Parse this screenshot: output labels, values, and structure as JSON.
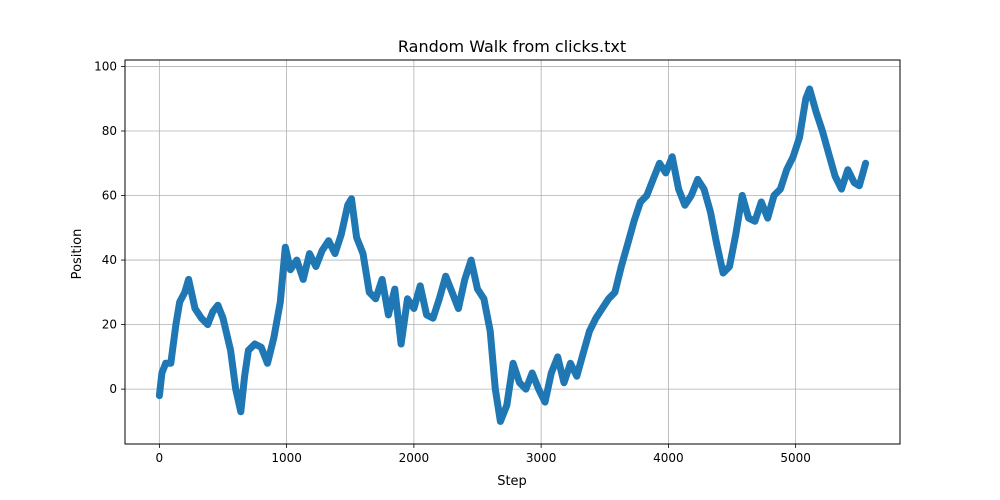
{
  "chart_data": {
    "type": "scatter",
    "title": "Random Walk from clicks.txt",
    "xlabel": "Step",
    "ylabel": "Position",
    "xlim": [
      -270,
      5820
    ],
    "ylim": [
      -17,
      102
    ],
    "xticks": [
      0,
      1000,
      2000,
      3000,
      4000,
      5000
    ],
    "yticks": [
      0,
      20,
      40,
      60,
      80,
      100
    ],
    "grid": true,
    "series": [
      {
        "color": "#1f77b4",
        "marker": "circle",
        "x": [
          0,
          20,
          50,
          90,
          130,
          160,
          200,
          230,
          280,
          330,
          380,
          420,
          460,
          500,
          560,
          600,
          640,
          670,
          700,
          750,
          800,
          850,
          900,
          950,
          990,
          1030,
          1080,
          1130,
          1180,
          1230,
          1280,
          1330,
          1380,
          1430,
          1480,
          1510,
          1550,
          1600,
          1650,
          1700,
          1750,
          1800,
          1850,
          1900,
          1950,
          2000,
          2050,
          2100,
          2150,
          2200,
          2250,
          2300,
          2350,
          2400,
          2450,
          2500,
          2550,
          2600,
          2640,
          2680,
          2730,
          2780,
          2830,
          2880,
          2930,
          2980,
          3030,
          3080,
          3130,
          3180,
          3230,
          3280,
          3330,
          3380,
          3430,
          3480,
          3530,
          3580,
          3630,
          3680,
          3730,
          3780,
          3830,
          3880,
          3930,
          3980,
          4030,
          4080,
          4130,
          4180,
          4230,
          4280,
          4330,
          4380,
          4430,
          4480,
          4530,
          4580,
          4630,
          4680,
          4730,
          4780,
          4830,
          4880,
          4930,
          4980,
          5030,
          5080,
          5110,
          5160,
          5210,
          5260,
          5310,
          5360,
          5410,
          5460,
          5500,
          5550
        ],
        "y": [
          -2,
          5,
          8,
          8,
          20,
          27,
          30,
          34,
          25,
          22,
          20,
          24,
          26,
          22,
          12,
          0,
          -7,
          4,
          12,
          14,
          13,
          8,
          16,
          27,
          44,
          37,
          40,
          34,
          42,
          38,
          43,
          46,
          42,
          48,
          57,
          59,
          47,
          42,
          30,
          28,
          34,
          23,
          31,
          14,
          28,
          25,
          32,
          23,
          22,
          28,
          35,
          30,
          25,
          34,
          40,
          31,
          28,
          18,
          0,
          -10,
          -5,
          8,
          2,
          0,
          5,
          0,
          -4,
          5,
          10,
          2,
          8,
          4,
          11,
          18,
          22,
          25,
          28,
          30,
          38,
          45,
          52,
          58,
          60,
          65,
          70,
          67,
          72,
          62,
          57,
          60,
          65,
          62,
          55,
          45,
          36,
          38,
          48,
          60,
          53,
          52,
          58,
          53,
          60,
          62,
          68,
          72,
          78,
          90,
          93,
          86,
          80,
          73,
          66,
          62,
          68,
          64,
          63,
          70
        ]
      }
    ]
  }
}
